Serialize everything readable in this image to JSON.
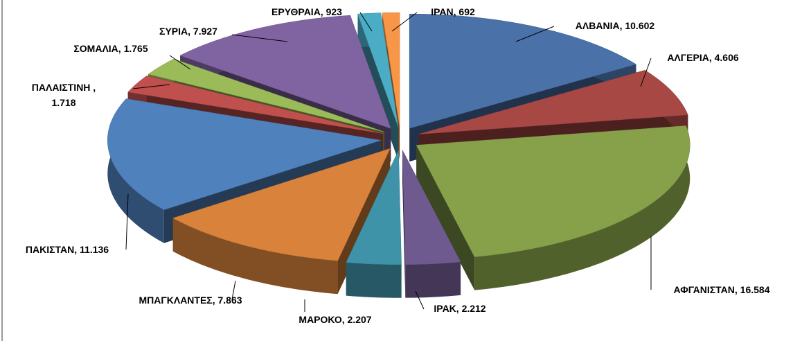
{
  "chart_data": {
    "type": "pie",
    "values": [
      10602,
      4606,
      16584,
      2212,
      2207,
      7863,
      11136,
      1718,
      1765,
      7927,
      923,
      692
    ],
    "value_labels": [
      "ΑΛΒΑΝΙΑ, 10.602",
      "ΑΛΓΕΡΙΑ, 4.606",
      "ΑΦΓΑΝΙΣΤΑΝ, 16.584",
      "ΙΡΑΚ, 2.212",
      "ΜΑΡΟΚΟ, 2.207",
      "ΜΠΑΓΚΛΑΝΤΕΣ, 7.863",
      "ΠΑΚΙΣΤΑΝ, 11.136",
      "ΠΑΛΑΙΣΤΙΝΗ ,\n1.718",
      "ΣΟΜΑΛΙΑ, 1.765",
      "ΣΥΡΙΑ, 7.927",
      "ΕΡΥΘΡΑΙΑ, 923",
      "ΙΡΑΝ, 692"
    ],
    "colors": [
      "#4a72a8",
      "#a84845",
      "#86a14a",
      "#6f5a8f",
      "#3f93a8",
      "#d9823b",
      "#4f81bd",
      "#c0504d",
      "#9bbb59",
      "#8064a2",
      "#4bacc6",
      "#f79646"
    ]
  }
}
